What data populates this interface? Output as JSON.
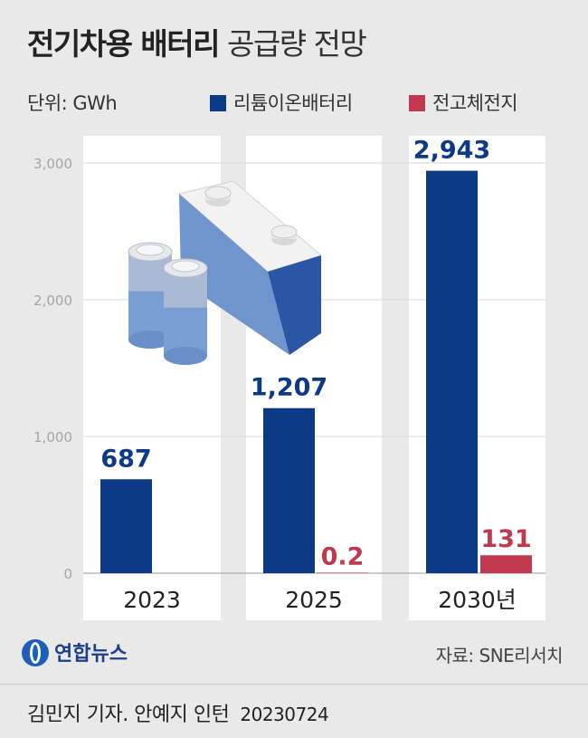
{
  "title_bold": "전기차용 배터리",
  "title_light": "공급량 전망",
  "unit_label": "단위: GWh",
  "source": "자료: SNE리서치",
  "logo_text": "연합뉴스",
  "credit": "김민지 기자. 안예지 인턴",
  "credit_date": "20230724",
  "colors": {
    "lithium": "#0d3a86",
    "solid": "#c0394f",
    "panel": "#ffffff",
    "grid": "#d9d9d9"
  },
  "chart_data": {
    "type": "bar",
    "categories": [
      "2023",
      "2025",
      "2030년"
    ],
    "series": [
      {
        "name": "리튬이온배터리",
        "values": [
          687,
          1207,
          2943
        ],
        "labels": [
          "687",
          "1,207",
          "2,943"
        ]
      },
      {
        "name": "전고체전지",
        "values": [
          null,
          0.2,
          131
        ],
        "labels": [
          "",
          "0.2",
          "131"
        ]
      }
    ],
    "yticks": [
      "0",
      "1,000",
      "2,000",
      "3,000"
    ],
    "ytick_values": [
      0,
      1000,
      2000,
      3000
    ],
    "ylim": [
      0,
      3000
    ],
    "unit": "GWh",
    "grid": true,
    "legend_position": "top-right"
  }
}
